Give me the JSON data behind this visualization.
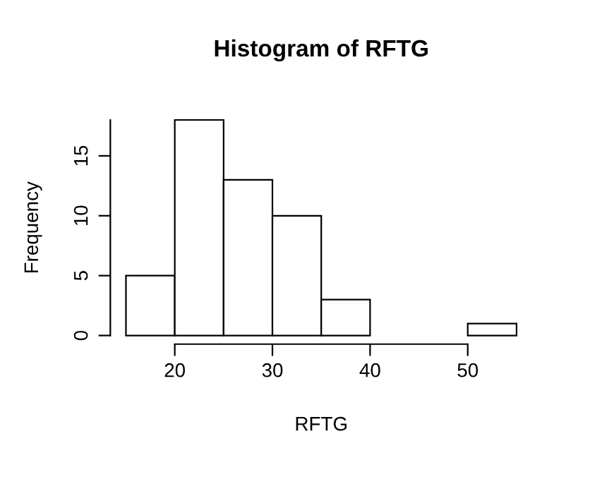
{
  "chart_data": {
    "type": "histogram",
    "title": "Histogram of RFTG",
    "xlabel": "RFTG",
    "ylabel": "Frequency",
    "bins": [
      15,
      20,
      25,
      30,
      35,
      40,
      45,
      50,
      55
    ],
    "values": [
      5,
      18,
      13,
      10,
      3,
      0,
      0,
      1
    ],
    "color": "#ffffff",
    "xlim": [
      20,
      50
    ],
    "ylim": [
      0,
      18
    ],
    "xticks": [
      20,
      30,
      40,
      50
    ],
    "yticks": [
      0,
      5,
      10,
      15
    ],
    "grid": false,
    "legend": false
  }
}
